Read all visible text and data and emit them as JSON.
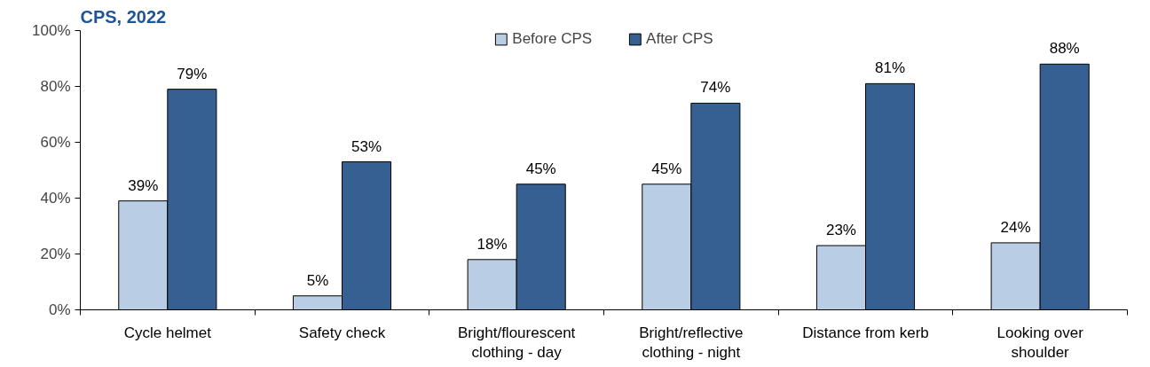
{
  "chart_data": {
    "type": "bar",
    "title": "CPS, 2022",
    "categories": [
      "Cycle helmet",
      "Safety check",
      "Bright/flourescent clothing - day",
      "Bright/reflective clothing - night",
      "Distance from kerb",
      "Looking over shoulder"
    ],
    "series": [
      {
        "name": "Before CPS",
        "color": "#b9cde5",
        "values": [
          39,
          5,
          18,
          45,
          23,
          24
        ],
        "value_labels": [
          "39%",
          "5%",
          "18%",
          "45%",
          "23%",
          "24%"
        ]
      },
      {
        "name": "After CPS",
        "color": "#376092",
        "values": [
          79,
          53,
          45,
          74,
          81,
          88
        ],
        "value_labels": [
          "79%",
          "53%",
          "45%",
          "74%",
          "81%",
          "88%"
        ]
      }
    ],
    "ylim": [
      0,
      100
    ],
    "yticks": [
      {
        "value": 0,
        "label": "0%"
      },
      {
        "value": 20,
        "label": "20%"
      },
      {
        "value": 40,
        "label": "40%"
      },
      {
        "value": 60,
        "label": "60%"
      },
      {
        "value": 80,
        "label": "80%"
      },
      {
        "value": 100,
        "label": "100%"
      }
    ],
    "legend": "top",
    "grid": false
  }
}
